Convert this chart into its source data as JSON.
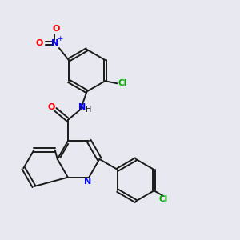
{
  "background_color": "#e8e8f0",
  "bond_color": "#1a1a1a",
  "N_color": "#0000ff",
  "O_color": "#ff0000",
  "Cl_color": "#00aa00",
  "figsize": [
    3.0,
    3.0
  ],
  "dpi": 100,
  "xlim": [
    0,
    10
  ],
  "ylim": [
    0,
    10
  ],
  "bond_lw": 1.4,
  "font_size": 7.5
}
